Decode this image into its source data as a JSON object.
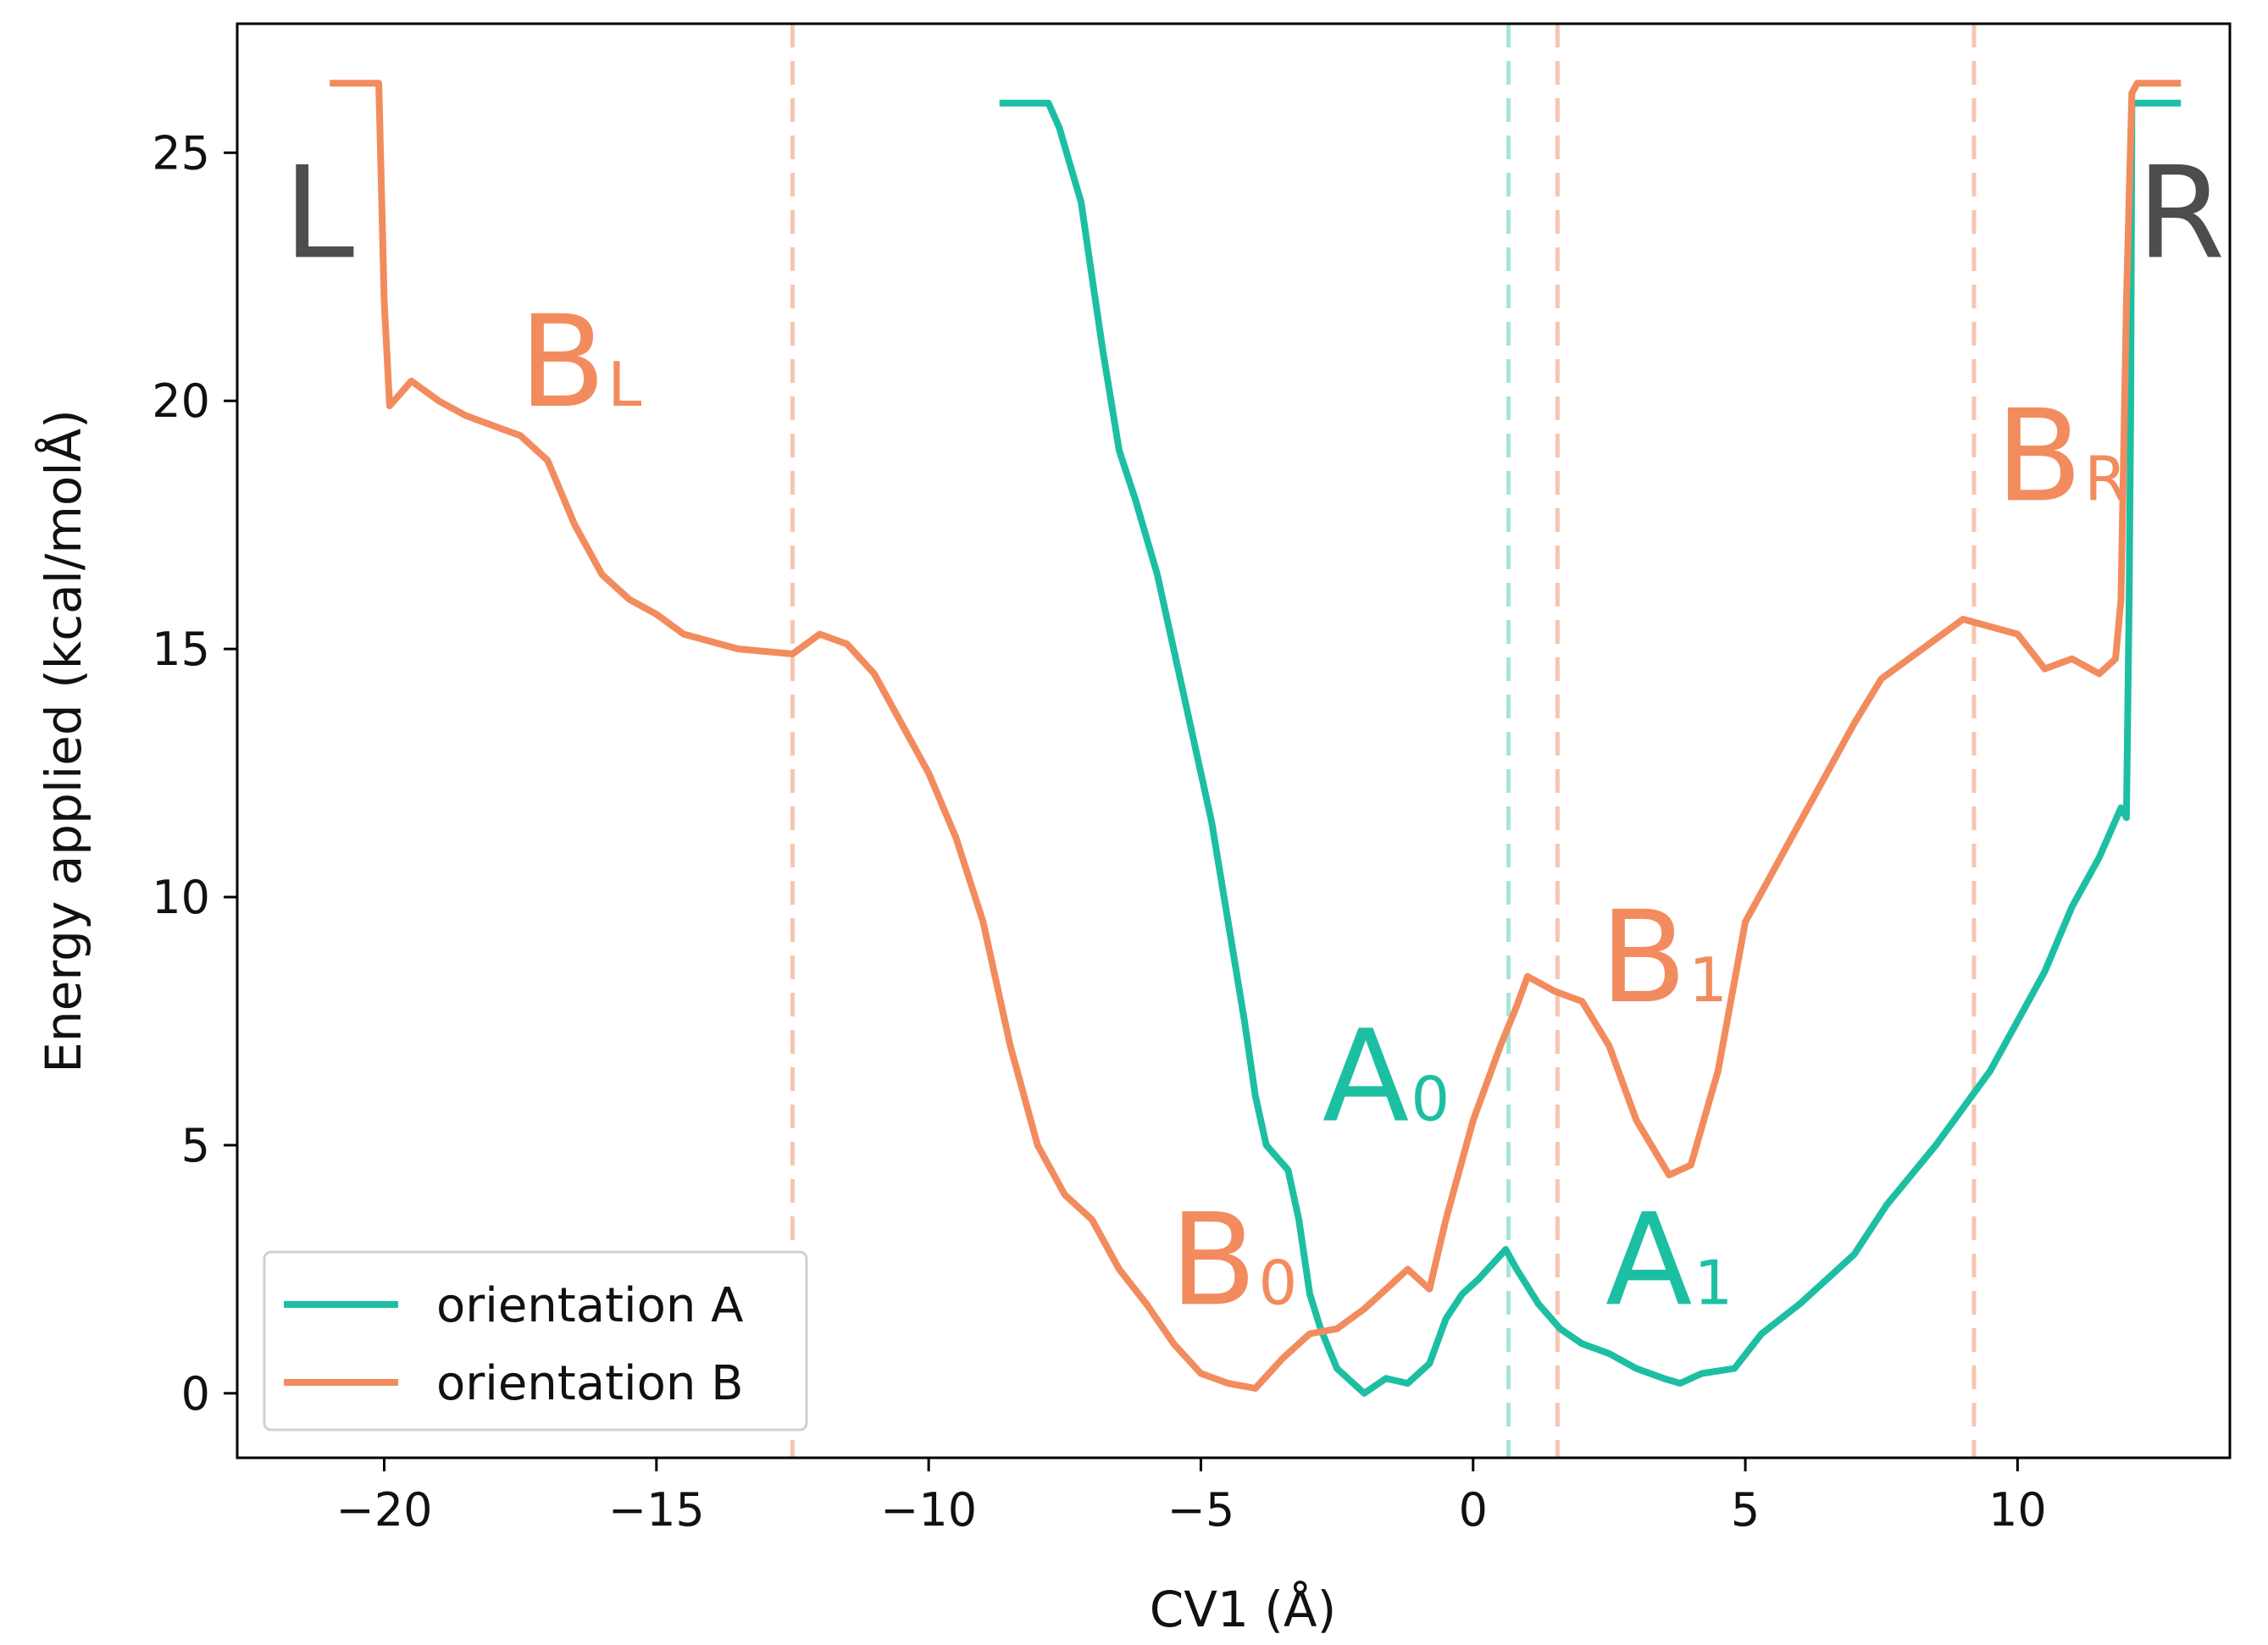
{
  "chart_data": {
    "type": "line",
    "title": "",
    "xlabel": "CV1 (Å)",
    "ylabel": "Energy applied (kcal/molÅ)",
    "xlim": [
      -22.7,
      13.9
    ],
    "ylim": [
      -1.3,
      27.6
    ],
    "xticks": [
      -20,
      -15,
      -10,
      -5,
      0,
      5,
      10
    ],
    "xtick_labels": [
      "−20",
      "−15",
      "−10",
      "−5",
      "0",
      "5",
      "10"
    ],
    "yticks": [
      0,
      5,
      10,
      15,
      20,
      25
    ],
    "ytick_labels": [
      "0",
      "5",
      "10",
      "15",
      "20",
      "25"
    ],
    "grid": false,
    "legend_position": "bottom-left",
    "colors": {
      "A": "#1dbfa3",
      "B": "#f28c5e",
      "corner": "#4d4d4d"
    },
    "series": [
      {
        "name": "orientation A",
        "color": "#1dbfa3",
        "x": [
          -8.7,
          -7.8,
          -7.6,
          -7.2,
          -7.0,
          -6.8,
          -6.5,
          -6.2,
          -5.8,
          -5.5,
          -5.2,
          -4.8,
          -4.5,
          -4.2,
          -4.0,
          -3.8,
          -3.4,
          -3.2,
          -3.0,
          -2.8,
          -2.5,
          -2.0,
          -1.6,
          -1.2,
          -0.8,
          -0.5,
          -0.2,
          0.1,
          0.6,
          0.8,
          1.2,
          1.6,
          2.0,
          2.5,
          3.0,
          3.5,
          3.8,
          4.2,
          4.8,
          5.3,
          6.0,
          7.0,
          7.6,
          8.5,
          9.5,
          10.5,
          11.0,
          11.5,
          11.9,
          12.0,
          12.05,
          12.08,
          12.1,
          12.15,
          13.0
        ],
        "values": [
          26.0,
          26.0,
          25.5,
          24.0,
          22.5,
          21.0,
          19.0,
          18.0,
          16.5,
          15.0,
          13.5,
          11.5,
          9.5,
          7.5,
          6.0,
          5.0,
          4.5,
          3.5,
          2.0,
          1.3,
          0.5,
          0.0,
          0.3,
          0.2,
          0.6,
          1.5,
          2.0,
          2.3,
          2.9,
          2.5,
          1.8,
          1.3,
          1.0,
          0.8,
          0.5,
          0.3,
          0.2,
          0.4,
          0.5,
          1.2,
          1.8,
          2.8,
          3.8,
          5.0,
          6.5,
          8.5,
          9.8,
          10.8,
          11.8,
          11.6,
          16.0,
          20.0,
          26.0,
          26.0,
          26.0
        ]
      },
      {
        "name": "orientation B",
        "color": "#f28c5e",
        "x": [
          -21.0,
          -20.1,
          -20.0,
          -19.9,
          -19.5,
          -19.0,
          -18.5,
          -18.0,
          -17.5,
          -17.0,
          -16.5,
          -16.0,
          -15.5,
          -15.0,
          -14.5,
          -13.5,
          -12.5,
          -12.0,
          -11.5,
          -11.0,
          -10.0,
          -9.5,
          -9.0,
          -8.5,
          -8.0,
          -7.5,
          -7.0,
          -6.5,
          -6.0,
          -5.5,
          -5.0,
          -4.5,
          -4.0,
          -3.5,
          -3.0,
          -2.5,
          -2.0,
          -1.5,
          -1.2,
          -0.8,
          -0.5,
          0.0,
          0.5,
          0.8,
          1.0,
          1.5,
          2.0,
          2.5,
          3.0,
          3.6,
          4.0,
          4.5,
          5.0,
          6.0,
          7.0,
          7.5,
          8.5,
          9.0,
          10.0,
          10.5,
          11.0,
          11.5,
          11.8,
          11.9,
          12.0,
          12.1,
          12.2,
          13.0
        ],
        "values": [
          26.4,
          26.4,
          22.0,
          19.9,
          20.4,
          20.0,
          19.7,
          19.5,
          19.3,
          18.8,
          17.5,
          16.5,
          16.0,
          15.7,
          15.3,
          15.0,
          14.9,
          15.3,
          15.1,
          14.5,
          12.5,
          11.2,
          9.5,
          7.0,
          5.0,
          4.0,
          3.5,
          2.5,
          1.8,
          1.0,
          0.4,
          0.2,
          0.1,
          0.7,
          1.2,
          1.3,
          1.7,
          2.2,
          2.5,
          2.1,
          3.5,
          5.5,
          7.0,
          7.8,
          8.4,
          8.1,
          7.9,
          7.0,
          5.5,
          4.4,
          4.6,
          6.5,
          9.5,
          11.5,
          13.5,
          14.4,
          15.2,
          15.6,
          15.3,
          14.6,
          14.8,
          14.5,
          14.8,
          16.0,
          22.0,
          26.2,
          26.4,
          26.4
        ]
      }
    ],
    "vlines": [
      {
        "x": -12.5,
        "color": "#f7c5b0",
        "series": "orientation B"
      },
      {
        "x": 0.65,
        "color": "#a6e6da",
        "series": "orientation A"
      },
      {
        "x": 1.55,
        "color": "#f7c5b0",
        "series": "orientation B"
      },
      {
        "x": 9.2,
        "color": "#f7c5b0",
        "series": "orientation B"
      }
    ],
    "annotations": [
      {
        "id": "L",
        "main": "L",
        "sub": "",
        "x": -21.2,
        "y": 22.9,
        "color": "#4d4d4d"
      },
      {
        "id": "R",
        "main": "R",
        "sub": "",
        "x": 13.0,
        "y": 22.9,
        "color": "#4d4d4d"
      },
      {
        "id": "BL",
        "main": "B",
        "sub": "L",
        "x": -16.4,
        "y": 19.9,
        "color": "#f28c5e"
      },
      {
        "id": "BR",
        "main": "B",
        "sub": "R",
        "x": 10.8,
        "y": 18.0,
        "color": "#f28c5e"
      },
      {
        "id": "B1",
        "main": "B",
        "sub": "1",
        "x": 3.5,
        "y": 7.9,
        "color": "#f28c5e"
      },
      {
        "id": "A0",
        "main": "A",
        "sub": "0",
        "x": -1.6,
        "y": 5.5,
        "color": "#1dbfa3"
      },
      {
        "id": "B0",
        "main": "B",
        "sub": "0",
        "x": -4.4,
        "y": 1.8,
        "color": "#f28c5e"
      },
      {
        "id": "A1",
        "main": "A",
        "sub": "1",
        "x": 3.6,
        "y": 1.8,
        "color": "#1dbfa3"
      }
    ]
  }
}
